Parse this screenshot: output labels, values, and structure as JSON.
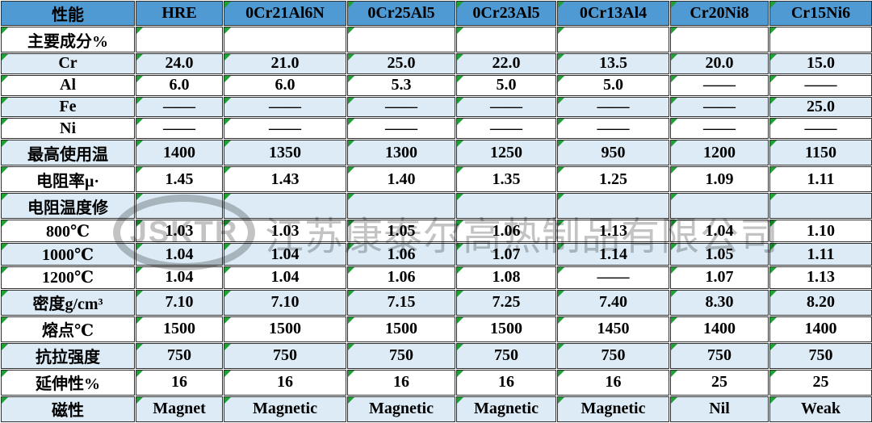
{
  "table": {
    "columns": [
      "性能",
      "HRE",
      "0Cr21Al6N",
      "0Cr25Al5",
      "0Cr23Al5",
      "0Cr13Al4",
      "Cr20Ni8",
      "Cr15Ni6"
    ],
    "rows": [
      {
        "label": "主要成分%",
        "values": [
          "",
          "",
          "",
          "",
          "",
          "",
          ""
        ]
      },
      {
        "label": "Cr",
        "values": [
          "24.0",
          "21.0",
          "25.0",
          "22.0",
          "13.5",
          "20.0",
          "15.0"
        ]
      },
      {
        "label": "Al",
        "values": [
          "6.0",
          "6.0",
          "5.3",
          "5.0",
          "5.0",
          "——",
          "——"
        ]
      },
      {
        "label": "Fe",
        "values": [
          "——",
          "——",
          "——",
          "——",
          "——",
          "——",
          "25.0"
        ]
      },
      {
        "label": "Ni",
        "values": [
          "——",
          "——",
          "——",
          "——",
          "——",
          "——",
          "——"
        ]
      },
      {
        "label": "最高使用温",
        "values": [
          "1400",
          "1350",
          "1300",
          "1250",
          "950",
          "1200",
          "1150"
        ]
      },
      {
        "label": "电阻率μ·",
        "values": [
          "1.45",
          "1.43",
          "1.40",
          "1.35",
          "1.25",
          "1.09",
          "1.11"
        ]
      },
      {
        "label": "电阻温度修",
        "values": [
          "",
          "",
          "",
          "",
          "",
          "",
          ""
        ]
      },
      {
        "label": "800℃",
        "values": [
          "1.03",
          "1.03",
          "1.05",
          "1.06",
          "1.13",
          "1.04",
          "1.10"
        ]
      },
      {
        "label": "1000℃",
        "values": [
          "1.04",
          "1.04",
          "1.06",
          "1.07",
          "1.14",
          "1.05",
          "1.11"
        ]
      },
      {
        "label": "1200℃",
        "values": [
          "1.04",
          "1.04",
          "1.06",
          "1.08",
          "——",
          "1.07",
          "1.13"
        ]
      },
      {
        "label": "密度g/cm³",
        "values": [
          "7.10",
          "7.10",
          "7.15",
          "7.25",
          "7.40",
          "8.30",
          "8.20"
        ]
      },
      {
        "label": "熔点℃",
        "values": [
          "1500",
          "1500",
          "1500",
          "1500",
          "1450",
          "1400",
          "1400"
        ]
      },
      {
        "label": "抗拉强度",
        "values": [
          "750",
          "750",
          "750",
          "750",
          "750",
          "750",
          "750"
        ]
      },
      {
        "label": "延伸性%",
        "values": [
          "16",
          "16",
          "16",
          "16",
          "16",
          "25",
          "25"
        ]
      },
      {
        "label": "磁性",
        "values": [
          "Magnet",
          "Magnetic",
          "Magnetic",
          "Magnetic",
          "Magnetic",
          "Nil",
          "Weak"
        ]
      }
    ]
  },
  "watermark": {
    "logo": "JSKTR",
    "company": "江苏康泰尔高热制品有限公司"
  },
  "colors": {
    "header_bg": "#4f9ad3",
    "row_alt_bg": "#dcebf6",
    "border": "#2f2f2f",
    "indicator_green": "#21a038",
    "watermark_gray": "#c3c3c3"
  }
}
